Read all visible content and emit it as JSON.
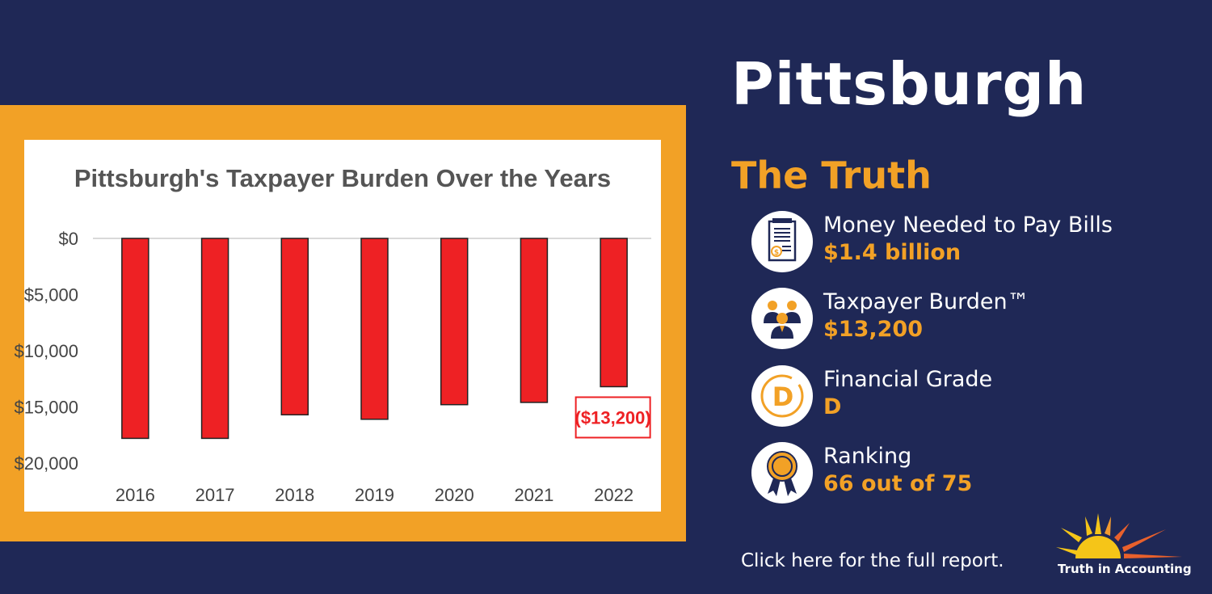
{
  "city": "Pittsburgh",
  "section_title": "The Truth",
  "stats": [
    {
      "label": "Money Needed to Pay Bills",
      "value": "$1.4 billion",
      "icon": "bill-icon"
    },
    {
      "label": "Taxpayer Burden™",
      "value": "$13,200",
      "icon": "taxpayers-icon"
    },
    {
      "label": "Financial Grade",
      "value": "D",
      "icon": "grade-icon"
    },
    {
      "label": "Ranking",
      "value": "66 out of 75",
      "icon": "ribbon-icon"
    }
  ],
  "report_link": "Click here for the full report.",
  "logo_text": "Truth in Accounting",
  "colors": {
    "background": "#1f2856",
    "accent": "#f2a126",
    "bar": "#ee2124"
  },
  "chart_data": {
    "type": "bar",
    "title": "Pittsburgh's Taxpayer Burden Over the Years",
    "categories": [
      "2016",
      "2017",
      "2018",
      "2019",
      "2020",
      "2021",
      "2022"
    ],
    "values": [
      -17800,
      -17800,
      -15700,
      -16100,
      -14800,
      -14600,
      -13200
    ],
    "ylim": [
      -20000,
      0
    ],
    "yticks": [
      0,
      -5000,
      -10000,
      -15000,
      -20000
    ],
    "ytick_labels": [
      "$0",
      "$5,000",
      "$10,000",
      "$15,000",
      "$20,000"
    ],
    "annotation": {
      "category": "2022",
      "text": "($13,200)"
    },
    "xlabel": "",
    "ylabel": "",
    "grid": false
  }
}
